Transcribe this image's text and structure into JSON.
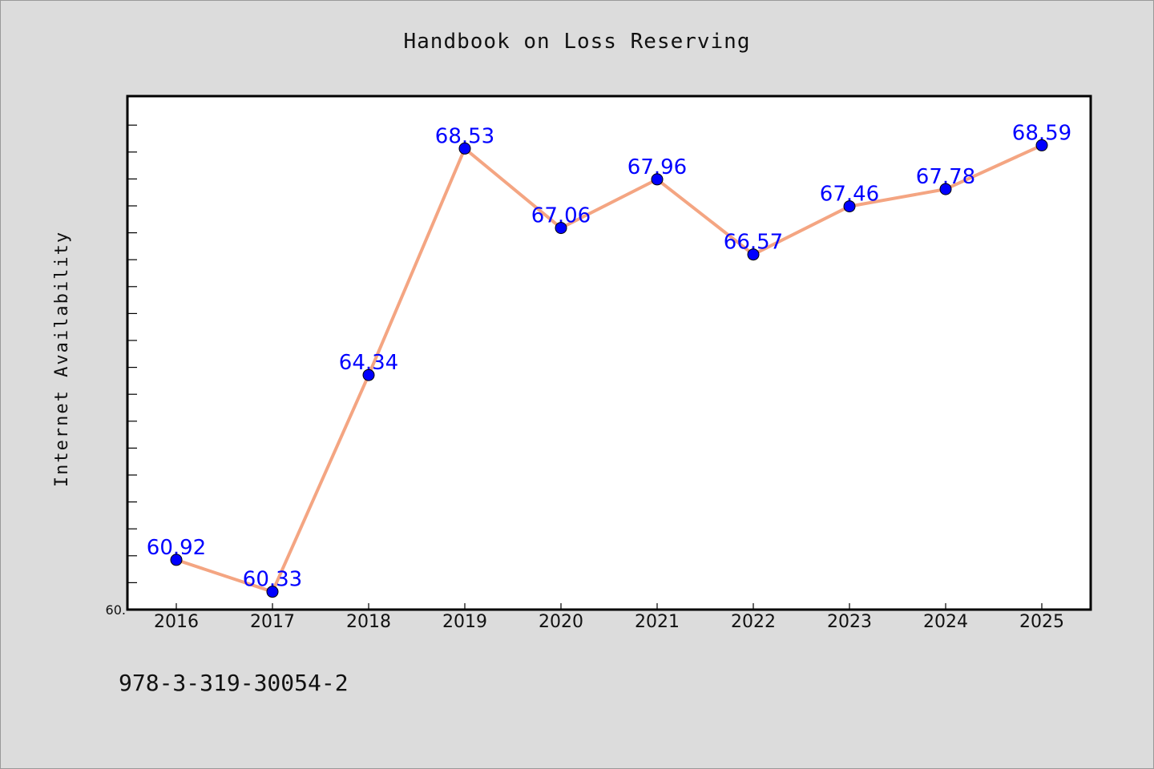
{
  "chart_data": {
    "type": "line",
    "title": "Handbook on Loss Reserving",
    "xlabel": "",
    "ylabel": "Internet Availability",
    "categories": [
      "2016",
      "2017",
      "2018",
      "2019",
      "2020",
      "2021",
      "2022",
      "2023",
      "2024",
      "2025"
    ],
    "series": [
      {
        "values": [
          60.92,
          60.33,
          64.34,
          68.53,
          67.06,
          67.96,
          66.57,
          67.46,
          67.78,
          68.59
        ],
        "data_labels": [
          "60.92",
          "60.33",
          "64.34",
          "68.53",
          "67.06",
          "67.96",
          "66.57",
          "67.46",
          "67.78",
          "68.59"
        ]
      }
    ],
    "ylim": [
      60.0,
      69.5
    ],
    "y_tick_label": "60.",
    "grid": false,
    "legend": "none",
    "colors": {
      "line": "#f4a582",
      "marker": "#0000ff",
      "marker_edge": "#000000",
      "data_label": "#0000ff",
      "plot_bg": "#ffffff",
      "page_bg": "#dcdcdc"
    }
  },
  "footer": {
    "isbn": "978-3-319-30054-2"
  }
}
